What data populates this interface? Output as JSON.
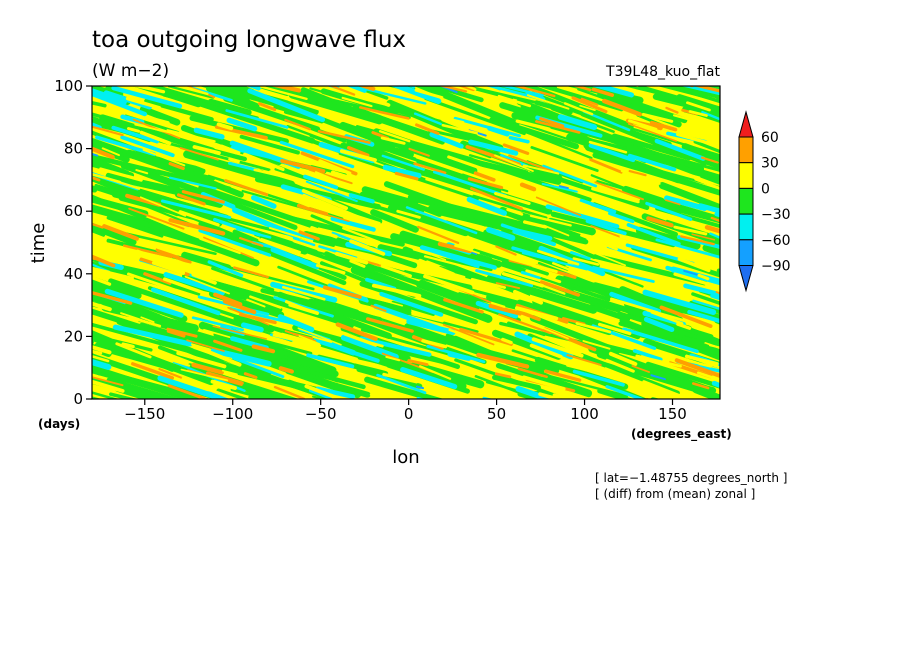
{
  "chart_data": {
    "type": "heatmap",
    "title": "toa outgoing longwave flux",
    "units": "(W m−2)",
    "run_label": "T39L48_kuo_flat",
    "xlabel": "lon",
    "ylabel": "time",
    "x_units": "(degrees_east)",
    "y_units": "(days)",
    "xlim": [
      -180,
      177
    ],
    "ylim": [
      0,
      100
    ],
    "x_ticks": [
      -150,
      -100,
      -50,
      0,
      50,
      100,
      150
    ],
    "x_tick_labels": [
      "−150",
      "−100",
      "−50",
      "0",
      "50",
      "100",
      "150"
    ],
    "y_ticks": [
      0,
      20,
      40,
      60,
      80,
      100
    ],
    "y_tick_labels": [
      "0",
      "20",
      "40",
      "60",
      "80",
      "100"
    ],
    "annotations": [
      "[ lat=−1.48755 degrees_north ]",
      "[ (diff) from (mean) zonal ]"
    ],
    "colorbar": {
      "levels": [
        -90,
        -60,
        -30,
        0,
        30,
        60
      ],
      "level_labels": [
        "−90",
        "−60",
        "−30",
        "0",
        "30",
        "60"
      ],
      "colors": [
        "#1e6ef0",
        "#14a0ff",
        "#00f0f0",
        "#1ee61e",
        "#ffff00",
        "#ffa000",
        "#f01e1e"
      ]
    },
    "pattern": "westward-propagating (diagonal) anomaly bands, mostly in the −60 to 30 range",
    "grid": false
  }
}
